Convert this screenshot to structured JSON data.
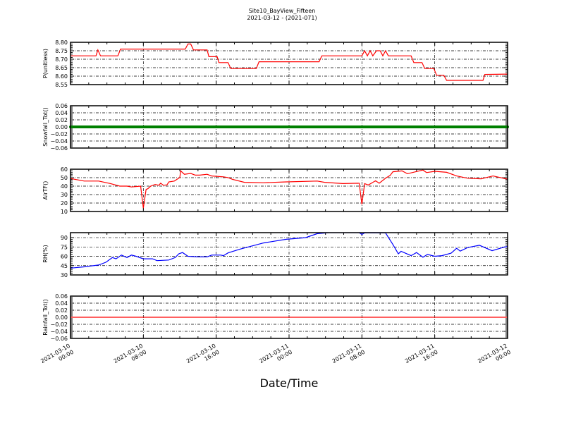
{
  "chart_data": {
    "type": "line",
    "title": "Site10_BayView_Fifteen",
    "subtitle": "2021-03-12 - (2021-071)",
    "xlabel": "Date/Time",
    "x_units": "hours since 2021-03-10 00:00",
    "xlim": [
      0,
      48
    ],
    "x_major_ticks": [
      0,
      8,
      16,
      24,
      32,
      40,
      48
    ],
    "x_tick_labels": [
      [
        "2021-03-10",
        "00:00"
      ],
      [
        "2021-03-10",
        "08:00"
      ],
      [
        "2021-03-10",
        "16:00"
      ],
      [
        "2021-03-11",
        "00:00"
      ],
      [
        "2021-03-11",
        "08:00"
      ],
      [
        "2021-03-11",
        "16:00"
      ],
      [
        "2021-03-12",
        "00:00"
      ]
    ],
    "grid": true,
    "panels": [
      {
        "ylabel": "P(unitless)",
        "ylim": [
          8.55,
          8.8
        ],
        "color": "#ff0000",
        "yticks": [
          8.55,
          8.6,
          8.65,
          8.7,
          8.75,
          8.8
        ],
        "tick_decimals": 2,
        "points": [
          [
            0,
            8.72
          ],
          [
            2.8,
            8.72
          ],
          [
            3.0,
            8.755
          ],
          [
            3.3,
            8.72
          ],
          [
            5.2,
            8.72
          ],
          [
            5.5,
            8.76
          ],
          [
            12.6,
            8.76
          ],
          [
            12.9,
            8.79
          ],
          [
            13.2,
            8.79
          ],
          [
            13.5,
            8.755
          ],
          [
            15.0,
            8.755
          ],
          [
            15.2,
            8.715
          ],
          [
            16.1,
            8.715
          ],
          [
            16.3,
            8.68
          ],
          [
            17.3,
            8.68
          ],
          [
            17.6,
            8.645
          ],
          [
            20.4,
            8.645
          ],
          [
            20.7,
            8.685
          ],
          [
            27.3,
            8.685
          ],
          [
            27.6,
            8.72
          ],
          [
            32.0,
            8.72
          ],
          [
            32.3,
            8.75
          ],
          [
            32.6,
            8.72
          ],
          [
            32.9,
            8.75
          ],
          [
            33.2,
            8.72
          ],
          [
            33.6,
            8.75
          ],
          [
            34.0,
            8.75
          ],
          [
            34.3,
            8.72
          ],
          [
            34.6,
            8.75
          ],
          [
            34.9,
            8.72
          ],
          [
            37.4,
            8.72
          ],
          [
            37.7,
            8.68
          ],
          [
            38.6,
            8.68
          ],
          [
            38.9,
            8.645
          ],
          [
            39.9,
            8.645
          ],
          [
            40.2,
            8.605
          ],
          [
            41.0,
            8.605
          ],
          [
            41.3,
            8.575
          ],
          [
            45.3,
            8.575
          ],
          [
            45.5,
            8.61
          ],
          [
            48,
            8.612
          ]
        ]
      },
      {
        "ylabel": "Snowfall_Tot()",
        "ylim": [
          -0.06,
          0.06
        ],
        "color": "#008000",
        "marker": true,
        "yticks": [
          -0.06,
          -0.04,
          -0.02,
          0.0,
          0.02,
          0.04,
          0.06
        ],
        "tick_decimals": 2,
        "points": [
          [
            0,
            0
          ],
          [
            48,
            0
          ]
        ]
      },
      {
        "ylabel": "AirTF()",
        "ylim": [
          10,
          60
        ],
        "color": "#ff0000",
        "yticks": [
          10,
          20,
          30,
          40,
          50,
          60
        ],
        "tick_decimals": 0,
        "points": [
          [
            0,
            49
          ],
          [
            1.5,
            46
          ],
          [
            3.1,
            46
          ],
          [
            4.4,
            43
          ],
          [
            5.4,
            40
          ],
          [
            6.2,
            40
          ],
          [
            6.7,
            39
          ],
          [
            7.7,
            40
          ],
          [
            8.0,
            14
          ],
          [
            8.3,
            36
          ],
          [
            8.5,
            37
          ],
          [
            8.8,
            40
          ],
          [
            9.3,
            42
          ],
          [
            9.7,
            41
          ],
          [
            9.9,
            43.5
          ],
          [
            10.2,
            41
          ],
          [
            10.6,
            41.5
          ],
          [
            10.8,
            45
          ],
          [
            11.4,
            46
          ],
          [
            11.9,
            49.5
          ],
          [
            12.0,
            50
          ],
          [
            12.1,
            58
          ],
          [
            12.5,
            54
          ],
          [
            13.2,
            55
          ],
          [
            13.7,
            53
          ],
          [
            14.2,
            53
          ],
          [
            15,
            54
          ],
          [
            15.5,
            52
          ],
          [
            16.8,
            51
          ],
          [
            17.3,
            50
          ],
          [
            17.8,
            48
          ],
          [
            19.1,
            44.5
          ],
          [
            21.2,
            44
          ],
          [
            23.7,
            45
          ],
          [
            27.1,
            46
          ],
          [
            27.9,
            44.5
          ],
          [
            29.9,
            43
          ],
          [
            31.7,
            43.4
          ],
          [
            32.0,
            18.4
          ],
          [
            32.3,
            43
          ],
          [
            32.7,
            41.3
          ],
          [
            33.5,
            46.3
          ],
          [
            33.9,
            43.4
          ],
          [
            34.6,
            49.3
          ],
          [
            35.1,
            52.7
          ],
          [
            35.4,
            57
          ],
          [
            36.4,
            58
          ],
          [
            37.0,
            54.7
          ],
          [
            38.7,
            59
          ],
          [
            39.1,
            56
          ],
          [
            40.0,
            57.5
          ],
          [
            41.3,
            56.3
          ],
          [
            42.4,
            52
          ],
          [
            43.6,
            49.3
          ],
          [
            45.1,
            48.7
          ],
          [
            46.4,
            52
          ],
          [
            47.8,
            48.7
          ],
          [
            48,
            48.5
          ]
        ]
      },
      {
        "ylabel": "RH(%)",
        "ylim": [
          30,
          98
        ],
        "color": "#0000ff",
        "yticks": [
          30,
          45,
          60,
          75,
          90
        ],
        "tick_decimals": 0,
        "points": [
          [
            0,
            41
          ],
          [
            1.5,
            43
          ],
          [
            3.1,
            46
          ],
          [
            3.9,
            50.5
          ],
          [
            4.6,
            58
          ],
          [
            5.0,
            56
          ],
          [
            5.6,
            62
          ],
          [
            6.2,
            58
          ],
          [
            6.7,
            62
          ],
          [
            7.2,
            60
          ],
          [
            8.0,
            56
          ],
          [
            9.0,
            56
          ],
          [
            9.5,
            53
          ],
          [
            10.8,
            54
          ],
          [
            11.5,
            58
          ],
          [
            11.9,
            64
          ],
          [
            12.3,
            66
          ],
          [
            12.9,
            60
          ],
          [
            14.0,
            59
          ],
          [
            15.0,
            59
          ],
          [
            15.5,
            62
          ],
          [
            16.5,
            62
          ],
          [
            16.8,
            61
          ],
          [
            17.3,
            65.5
          ],
          [
            18.6,
            71.5
          ],
          [
            21.2,
            81.5
          ],
          [
            23.7,
            87.4
          ],
          [
            25.8,
            90
          ],
          [
            27.1,
            96.4
          ],
          [
            28.4,
            98
          ],
          [
            31.7,
            98
          ],
          [
            32.0,
            95
          ],
          [
            32.3,
            97.5
          ],
          [
            34.6,
            97.5
          ],
          [
            35.4,
            79
          ],
          [
            36.0,
            64
          ],
          [
            36.3,
            68
          ],
          [
            37.4,
            61
          ],
          [
            38.0,
            66
          ],
          [
            38.7,
            58.5
          ],
          [
            39.2,
            63
          ],
          [
            40.0,
            60
          ],
          [
            40.8,
            61
          ],
          [
            41.8,
            65
          ],
          [
            42.4,
            72.8
          ],
          [
            42.8,
            68.3
          ],
          [
            43.6,
            74
          ],
          [
            44.9,
            77.7
          ],
          [
            46.3,
            69
          ],
          [
            47.6,
            74.7
          ],
          [
            48,
            75.8
          ]
        ]
      },
      {
        "ylabel": "Rainfall_Tot()",
        "ylim": [
          -0.06,
          0.06
        ],
        "color": "#ff0000",
        "yticks": [
          -0.06,
          -0.04,
          -0.02,
          0.0,
          0.02,
          0.04,
          0.06
        ],
        "tick_decimals": 2,
        "points": [
          [
            0,
            0
          ],
          [
            48,
            0
          ]
        ]
      }
    ]
  }
}
